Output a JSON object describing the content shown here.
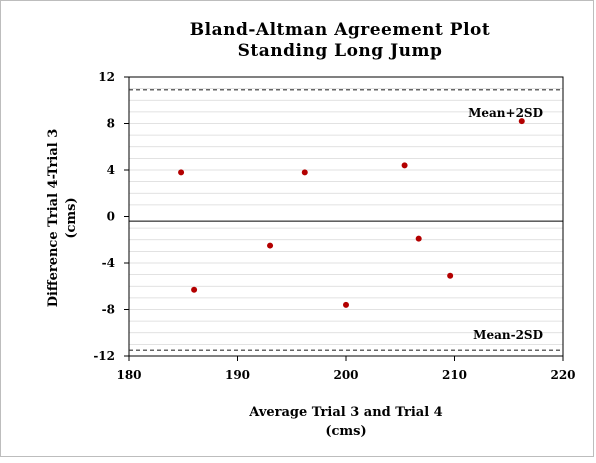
{
  "chart_data": {
    "type": "scatter",
    "title": "Bland-Altman Agreement Plot",
    "subtitle": "Standing Long Jump",
    "xlabel_line1": "Average Trial 3 and Trial 4",
    "xlabel_line2": "(cms)",
    "ylabel_line1": "Difference Trial 4-Trial 3",
    "ylabel_line2": "(cms)",
    "xlim": [
      180,
      220
    ],
    "ylim": [
      -12,
      12
    ],
    "x_ticks": [
      180,
      190,
      200,
      210,
      220
    ],
    "y_ticks": [
      -12,
      -8,
      -4,
      0,
      4,
      8,
      12
    ],
    "grid": "horizontal minor",
    "mean_difference": -0.4,
    "upper_limit": 10.9,
    "lower_limit": -11.5,
    "upper_label": "Mean+2SD",
    "lower_label": "Mean-2SD",
    "point_color": "#b30000",
    "points": [
      {
        "x": 184.8,
        "y": 3.8
      },
      {
        "x": 186.0,
        "y": -6.3
      },
      {
        "x": 193.0,
        "y": -2.5
      },
      {
        "x": 196.2,
        "y": 3.8
      },
      {
        "x": 200.0,
        "y": -7.6
      },
      {
        "x": 205.4,
        "y": 4.4
      },
      {
        "x": 206.7,
        "y": -1.9
      },
      {
        "x": 209.6,
        "y": -5.1
      },
      {
        "x": 216.2,
        "y": 8.2
      }
    ]
  }
}
